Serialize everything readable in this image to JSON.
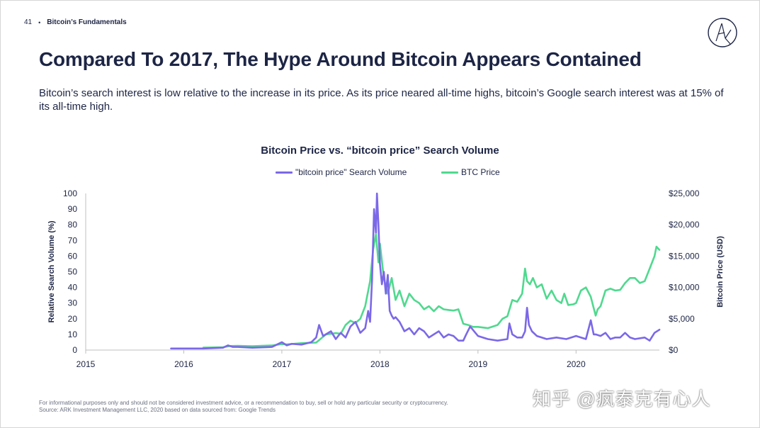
{
  "header": {
    "page_number": "41",
    "section": "Bitcoin’s Fundamentals"
  },
  "title": "Compared To 2017, The Hype Around Bitcoin Appears Contained",
  "subtitle": "Bitcoin’s search interest is low relative to the increase in its price. As its price neared all-time highs, bitcoin’s Google search interest was at 15% of its all-time high.",
  "footnote": {
    "disclaimer": "For informational purposes only and should not be considered investment advice, or a recommendation to buy, sell or hold any particular security or cryptocurrency.",
    "source": "Source: ARK Investment Management LLC, 2020 based on data sourced from: Google Trends"
  },
  "watermark": "知乎 @疯泰克有心人",
  "colors": {
    "search": "#7b68e8",
    "price": "#4fd98e",
    "text": "#1d2545",
    "axis": "#bfbfbf"
  },
  "chart_data": {
    "type": "line",
    "title": "Bitcoin Price vs. “bitcoin price” Search Volume",
    "legend_placement": "top-center",
    "grid": false,
    "xlim": [
      2015.0,
      2020.85
    ],
    "x_ticks": [
      2015,
      2016,
      2017,
      2018,
      2019,
      2020
    ],
    "x_tick_labels": [
      "2015",
      "2016",
      "2017",
      "2018",
      "2019",
      "2020"
    ],
    "y_left": {
      "label": "Relative Search Volume (%)",
      "lim": [
        0,
        100
      ],
      "ticks": [
        0,
        10,
        20,
        30,
        40,
        50,
        60,
        70,
        80,
        90,
        100
      ],
      "tick_labels": [
        "0",
        "10",
        "20",
        "30",
        "40",
        "50",
        "60",
        "70",
        "80",
        "90",
        "100"
      ]
    },
    "y_right": {
      "label": "Bitcoin Price (USD)",
      "lim": [
        0,
        25000
      ],
      "ticks": [
        0,
        5000,
        10000,
        15000,
        20000,
        25000
      ],
      "tick_labels": [
        "$0",
        "$5,000",
        "$10,000",
        "$15,000",
        "$20,000",
        "$25,000"
      ]
    },
    "series": [
      {
        "name": "\"bitcoin price\" Search Volume",
        "axis": "left",
        "color": "#7b68e8",
        "x": [
          2015.87,
          2016.0,
          2016.2,
          2016.4,
          2016.45,
          2016.5,
          2016.55,
          2016.7,
          2016.9,
          2017.0,
          2017.05,
          2017.1,
          2017.2,
          2017.3,
          2017.35,
          2017.38,
          2017.42,
          2017.5,
          2017.55,
          2017.6,
          2017.65,
          2017.7,
          2017.75,
          2017.8,
          2017.85,
          2017.88,
          2017.9,
          2017.92,
          2017.94,
          2017.96,
          2017.97,
          2017.985,
          2018.0,
          2018.02,
          2018.04,
          2018.06,
          2018.08,
          2018.1,
          2018.12,
          2018.14,
          2018.16,
          2018.2,
          2018.25,
          2018.3,
          2018.35,
          2018.4,
          2018.45,
          2018.5,
          2018.55,
          2018.6,
          2018.65,
          2018.7,
          2018.75,
          2018.8,
          2018.85,
          2018.88,
          2018.92,
          2019.0,
          2019.1,
          2019.2,
          2019.3,
          2019.32,
          2019.35,
          2019.4,
          2019.45,
          2019.48,
          2019.5,
          2019.52,
          2019.55,
          2019.6,
          2019.7,
          2019.8,
          2019.9,
          2020.0,
          2020.1,
          2020.15,
          2020.18,
          2020.2,
          2020.25,
          2020.3,
          2020.35,
          2020.4,
          2020.45,
          2020.5,
          2020.55,
          2020.6,
          2020.7,
          2020.75,
          2020.8,
          2020.85
        ],
        "y": [
          1,
          1,
          1,
          1.5,
          3,
          2,
          2,
          1.5,
          2,
          5,
          3,
          4,
          3.5,
          5,
          8,
          16,
          9,
          12,
          7,
          11,
          8,
          15,
          18,
          11,
          14,
          25,
          18,
          45,
          90,
          75,
          100,
          80,
          55,
          42,
          50,
          36,
          48,
          25,
          22,
          20,
          21,
          18,
          12,
          14,
          10,
          14,
          12,
          8,
          10,
          12,
          8,
          10,
          9,
          6,
          6,
          10,
          15,
          9,
          7,
          6,
          7,
          17,
          10,
          8,
          8,
          12,
          27,
          16,
          12,
          9,
          7,
          8,
          7,
          9,
          7,
          19,
          10,
          10,
          9,
          11,
          7,
          8,
          8,
          11,
          8,
          7,
          8,
          6,
          11,
          13
        ]
      },
      {
        "name": "BTC Price",
        "axis": "right",
        "color": "#4fd98e",
        "x": [
          2016.2,
          2016.4,
          2016.47,
          2016.55,
          2016.7,
          2016.9,
          2017.0,
          2017.05,
          2017.2,
          2017.35,
          2017.45,
          2017.55,
          2017.6,
          2017.65,
          2017.7,
          2017.75,
          2017.8,
          2017.85,
          2017.9,
          2017.93,
          2017.96,
          2017.985,
          2018.0,
          2018.04,
          2018.08,
          2018.12,
          2018.16,
          2018.2,
          2018.25,
          2018.3,
          2018.35,
          2018.4,
          2018.45,
          2018.5,
          2018.55,
          2018.6,
          2018.65,
          2018.7,
          2018.75,
          2018.8,
          2018.85,
          2018.9,
          2018.95,
          2019.0,
          2019.1,
          2019.2,
          2019.25,
          2019.3,
          2019.35,
          2019.4,
          2019.45,
          2019.48,
          2019.5,
          2019.53,
          2019.56,
          2019.6,
          2019.65,
          2019.7,
          2019.75,
          2019.8,
          2019.85,
          2019.88,
          2019.92,
          2019.97,
          2020.0,
          2020.05,
          2020.1,
          2020.15,
          2020.2,
          2020.22,
          2020.25,
          2020.3,
          2020.35,
          2020.4,
          2020.45,
          2020.5,
          2020.55,
          2020.6,
          2020.65,
          2020.7,
          2020.75,
          2020.8,
          2020.82,
          2020.85
        ],
        "y": [
          400,
          450,
          650,
          680,
          620,
          740,
          950,
          900,
          1100,
          1200,
          2500,
          2700,
          2600,
          4000,
          4700,
          4300,
          5000,
          7000,
          11000,
          16000,
          18500,
          14000,
          17000,
          11500,
          9000,
          11500,
          8000,
          9500,
          7000,
          9000,
          8000,
          7500,
          6500,
          7000,
          6200,
          7000,
          6500,
          6400,
          6300,
          6500,
          4200,
          4000,
          3700,
          3700,
          3500,
          4000,
          5000,
          5400,
          8000,
          7700,
          9000,
          13000,
          11000,
          10500,
          11500,
          10000,
          10500,
          8200,
          9500,
          8000,
          7500,
          9000,
          7200,
          7300,
          7500,
          9500,
          10000,
          8500,
          5500,
          6500,
          7000,
          9500,
          9800,
          9500,
          9600,
          10700,
          11500,
          11500,
          10700,
          11000,
          13000,
          15000,
          16500,
          16000
        ]
      }
    ]
  }
}
